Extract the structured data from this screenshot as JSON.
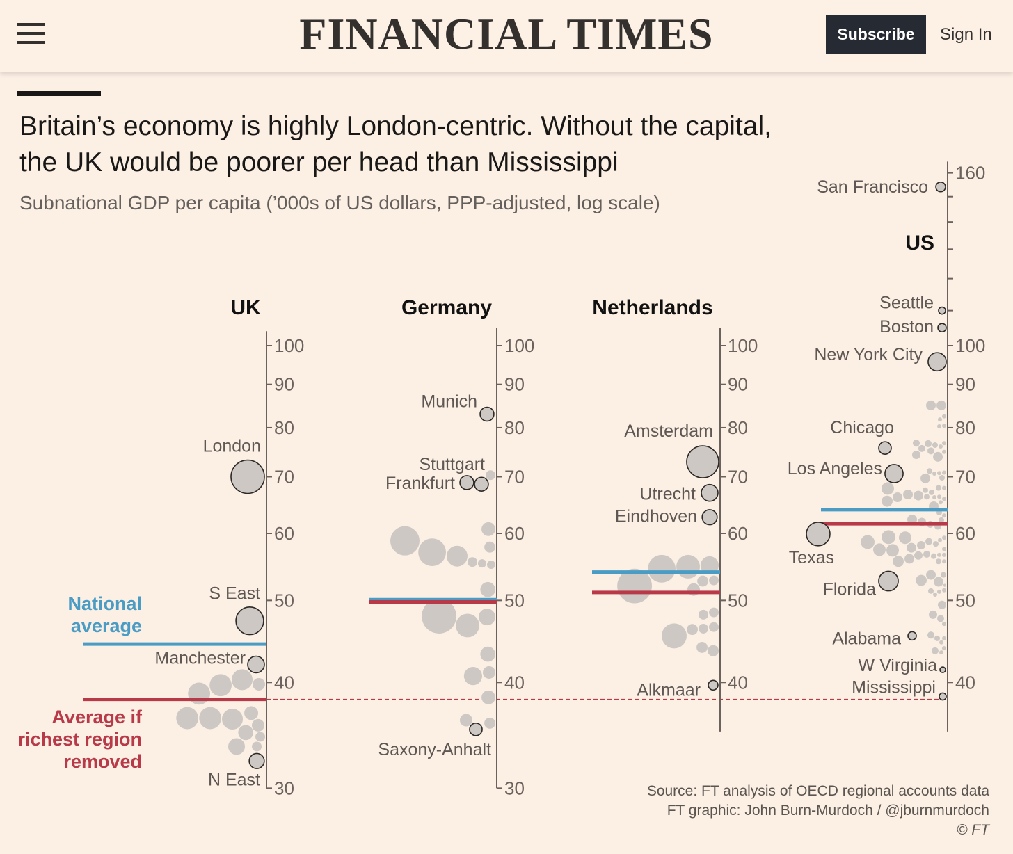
{
  "header": {
    "logo": "FINANCIAL TIMES",
    "subscribe_label": "Subscribe",
    "signin_label": "Sign In",
    "menu_icon": "hamburger-icon"
  },
  "article": {
    "headline_line1": "Britain’s economy is highly London-centric. Without the capital,",
    "headline_line2": "the UK would be poorer per head than Mississippi",
    "source": "Source: FT analysis of OECD regional accounts data",
    "credit": "FT graphic: John Burn-Murdoch / @jburnmurdoch",
    "copyright": "© FT"
  },
  "colors": {
    "national_average": "#4a9cc4",
    "without_richest": "#b83a48",
    "dot": "#cdc8c3",
    "axis": "#6b625d"
  },
  "chart_data": {
    "type": "scatter",
    "title": "Britain’s economy is highly London-centric. Without the capital, the UK would be poorer per head than Mississippi",
    "subtitle": "Subnational GDP per capita (’000s of US dollars, PPP-adjusted, log scale)",
    "yscale": "log",
    "size_encoding": "relative population weight",
    "legend": {
      "national_average": "National average",
      "without_richest_1": "Average if",
      "without_richest_2": "richest region",
      "without_richest_3": "removed"
    },
    "panels": [
      {
        "name": "UK",
        "range": [
          30,
          104
        ],
        "ticks": [
          30,
          40,
          50,
          60,
          70,
          80,
          90,
          100
        ],
        "tick_labels": [
          "30",
          "40",
          "50",
          "60",
          "70",
          "80",
          "90",
          "100"
        ],
        "national_average": 44.4,
        "average_without_richest": 38.2,
        "labeled": [
          {
            "name": "London",
            "value": 70,
            "w": 64
          },
          {
            "name": "S East",
            "value": 47.3,
            "w": 44
          },
          {
            "name": "Manchester",
            "value": 42,
            "w": 16
          },
          {
            "name": "N East",
            "value": 32.3,
            "w": 13
          }
        ],
        "others": [
          [
            39.7,
            28
          ],
          [
            38.8,
            28
          ],
          [
            40.3,
            25
          ],
          [
            39.8,
            9
          ],
          [
            36.3,
            28
          ],
          [
            36.3,
            28
          ],
          [
            36.2,
            25
          ],
          [
            36.8,
            11
          ],
          [
            35.6,
            9
          ],
          [
            34.9,
            13
          ],
          [
            34.5,
            5.4
          ],
          [
            33.6,
            16
          ],
          [
            33.6,
            5.4
          ]
        ]
      },
      {
        "name": "Germany",
        "range": [
          30,
          105
        ],
        "ticks": [
          30,
          40,
          50,
          60,
          70,
          80,
          90,
          100
        ],
        "tick_labels": [
          "30",
          "40",
          "50",
          "60",
          "70",
          "80",
          "90",
          "100"
        ],
        "national_average": 50.1,
        "average_without_richest": 49.8,
        "labeled": [
          {
            "name": "Munich",
            "value": 83,
            "w": 11
          },
          {
            "name": "Stuttgart",
            "value": 68.6,
            "w": 11
          },
          {
            "name": "Frankfurt",
            "value": 68.9,
            "w": 11
          },
          {
            "name": "Saxony-Anhalt",
            "value": 35.2,
            "w": 9
          }
        ],
        "others": [
          [
            70.3,
            5.4
          ],
          [
            60.7,
            11
          ],
          [
            58.8,
            49
          ],
          [
            57.0,
            44
          ],
          [
            56.4,
            25
          ],
          [
            57.8,
            7
          ],
          [
            55.5,
            5.4
          ],
          [
            55.1,
            4
          ],
          [
            55.3,
            4
          ],
          [
            51.5,
            13
          ],
          [
            47.9,
            69
          ],
          [
            47.8,
            16
          ],
          [
            46.7,
            32
          ],
          [
            43.2,
            13
          ],
          [
            40.7,
            19
          ],
          [
            41.1,
            9
          ],
          [
            38.4,
            11
          ],
          [
            36.1,
            9
          ],
          [
            35.8,
            7
          ]
        ]
      },
      {
        "name": "Netherlands",
        "range": [
          35,
          105
        ],
        "ticks": [
          40,
          50,
          60,
          70,
          80,
          90,
          100
        ],
        "tick_labels": [
          "40",
          "50",
          "60",
          "70",
          "80",
          "90",
          "100"
        ],
        "national_average": 54.0,
        "average_without_richest": 51.1,
        "labeled": [
          {
            "name": "Amsterdam",
            "value": 72.9,
            "w": 59
          },
          {
            "name": "Utrecht",
            "value": 67,
            "w": 16
          },
          {
            "name": "Eindhoven",
            "value": 62.7,
            "w": 13
          },
          {
            "name": "Alkmaar",
            "value": 39.7,
            "w": 5.4
          }
        ],
        "others": [
          [
            52.0,
            69
          ],
          [
            54.5,
            44
          ],
          [
            54.8,
            32
          ],
          [
            55.0,
            19
          ],
          [
            52.7,
            7
          ],
          [
            52.8,
            5.4
          ],
          [
            51.5,
            9
          ],
          [
            48.4,
            5.4
          ],
          [
            48.1,
            5.4
          ],
          [
            46.5,
            5.4
          ],
          [
            46.3,
            5.4
          ],
          [
            46.2,
            7
          ],
          [
            45.4,
            36
          ],
          [
            43.6,
            7
          ],
          [
            44.0,
            7
          ]
        ]
      },
      {
        "name": "US",
        "range": [
          35,
          165
        ],
        "ticks": [
          40,
          50,
          60,
          70,
          80,
          90,
          100,
          110,
          120,
          130,
          140,
          150,
          160
        ],
        "tick_labels": [
          "40",
          "50",
          "60",
          "70",
          "80",
          "90",
          "100",
          "",
          "",
          "",
          "",
          "",
          "160"
        ],
        "national_average": 64.0,
        "average_without_richest": 61.6,
        "labeled": [
          {
            "name": "San Francisco",
            "value": 154,
            "w": 5.4
          },
          {
            "name": "Seattle",
            "value": 110,
            "w": 2.8
          },
          {
            "name": "Boston",
            "value": 105,
            "w": 4
          },
          {
            "name": "New York City",
            "value": 95.7,
            "w": 19
          },
          {
            "name": "Chicago",
            "value": 75.7,
            "w": 9
          },
          {
            "name": "Los Angeles",
            "value": 70.6,
            "w": 19
          },
          {
            "name": "Texas",
            "value": 59.9,
            "w": 32
          },
          {
            "name": "Florida",
            "value": 52.7,
            "w": 22
          },
          {
            "name": "Alabama",
            "value": 45.4,
            "w": 4
          },
          {
            "name": "W Virginia",
            "value": 41.4,
            "w": 1.8
          },
          {
            "name": "Mississippi",
            "value": 38.5,
            "w": 2.8
          }
        ],
        "others": [
          [
            85.0,
            5.4
          ],
          [
            85.0,
            5.4
          ],
          [
            82.5,
            1
          ],
          [
            81.8,
            1
          ],
          [
            80.4,
            1
          ],
          [
            80.3,
            1
          ],
          [
            76.6,
            2.8
          ],
          [
            75.6,
            2.8
          ],
          [
            76.7,
            2.8
          ],
          [
            76.3,
            1.8
          ],
          [
            76.7,
            1
          ],
          [
            76.0,
            1
          ],
          [
            75.1,
            2.8
          ],
          [
            74.3,
            4
          ],
          [
            74.9,
            1
          ],
          [
            73.9,
            5.4
          ],
          [
            71.1,
            1.8
          ],
          [
            70.8,
            1
          ],
          [
            70.7,
            1
          ],
          [
            70.6,
            1
          ],
          [
            69.7,
            5.4
          ],
          [
            69.8,
            1.8
          ],
          [
            67.8,
            9
          ],
          [
            65.5,
            7
          ],
          [
            66.5,
            5.4
          ],
          [
            66.7,
            5.4
          ],
          [
            66.2,
            5.4
          ],
          [
            67.1,
            1.8
          ],
          [
            66.3,
            1.8
          ],
          [
            65.9,
            1
          ],
          [
            67.9,
            1.8
          ],
          [
            67.5,
            1.8
          ],
          [
            67.9,
            1
          ],
          [
            66.3,
            1
          ],
          [
            66.2,
            1
          ],
          [
            65.3,
            1
          ],
          [
            64.6,
            5.4
          ],
          [
            63.5,
            1.8
          ],
          [
            63.0,
            1
          ],
          [
            62.3,
            5.4
          ],
          [
            61.9,
            4
          ],
          [
            61.2,
            2.8
          ],
          [
            61.5,
            2.8
          ],
          [
            62.2,
            1.8
          ],
          [
            59.4,
            11
          ],
          [
            58.6,
            11
          ],
          [
            57.3,
            9
          ],
          [
            57.4,
            9
          ],
          [
            59.3,
            9
          ],
          [
            57.7,
            5.4
          ],
          [
            58.1,
            4
          ],
          [
            58.7,
            2.8
          ],
          [
            58.3,
            1.8
          ],
          [
            59.3,
            1
          ],
          [
            58.9,
            1
          ],
          [
            55.6,
            7
          ],
          [
            56.0,
            5.4
          ],
          [
            56.5,
            4
          ],
          [
            56.7,
            2.8
          ],
          [
            56.4,
            1.8
          ],
          [
            56.6,
            1
          ],
          [
            57.5,
            1
          ],
          [
            55.6,
            1.8
          ],
          [
            55.6,
            1
          ],
          [
            56.6,
            1
          ],
          [
            52.8,
            7
          ],
          [
            52.6,
            5.4
          ],
          [
            53.6,
            5.4
          ],
          [
            53.6,
            1.8
          ],
          [
            51.3,
            1.8
          ],
          [
            51.4,
            1
          ],
          [
            51.2,
            1
          ],
          [
            52.1,
            0.5
          ],
          [
            50.8,
            1
          ],
          [
            49.4,
            4
          ],
          [
            48.1,
            4
          ],
          [
            47.6,
            2.8
          ],
          [
            46.9,
            1
          ],
          [
            45.5,
            2.8
          ],
          [
            45.1,
            1.8
          ],
          [
            45.1,
            1
          ],
          [
            44.6,
            1
          ],
          [
            43.6,
            2.8
          ],
          [
            43.9,
            1
          ],
          [
            43.4,
            1
          ]
        ]
      }
    ]
  }
}
